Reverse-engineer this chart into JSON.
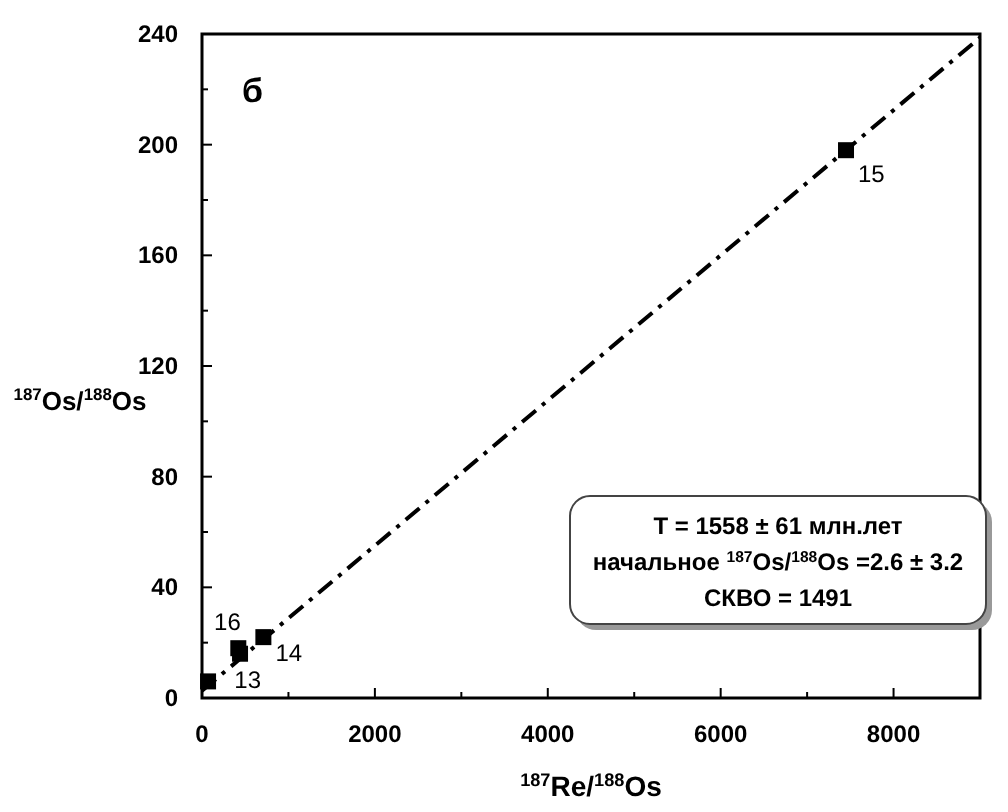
{
  "chart_data": {
    "type": "scatter",
    "xlabel": "$^{187}$Re/$^{188}$Os",
    "ylabel": "$^{187}$Os/$^{188}$Os",
    "xlim": [
      0,
      9000
    ],
    "ylim": [
      0,
      240
    ],
    "xticks": [
      0,
      {
        "value": 1000,
        "label": null
      },
      2000,
      {
        "value": 3000,
        "label": null
      },
      4000,
      {
        "value": 5000,
        "label": null
      },
      6000,
      {
        "value": 7000,
        "label": null
      },
      8000
    ],
    "yticks": [
      0,
      {
        "value": 20,
        "label": null
      },
      40,
      {
        "value": 60,
        "label": null
      },
      80,
      {
        "value": 100,
        "label": null
      },
      120,
      {
        "value": 140,
        "label": null
      },
      160,
      {
        "value": 180,
        "label": null
      },
      200,
      {
        "value": 220,
        "label": null
      },
      240
    ],
    "grid": false,
    "series": [
      {
        "marker": "square",
        "color": "#000000",
        "x": [
          70,
          420,
          440,
          710,
          7450
        ],
        "values": [
          6,
          18,
          16,
          22,
          198
        ]
      },
      {
        "type": "line",
        "line_style": "dashed",
        "marker": "none",
        "color": "#000000",
        "x": [
          0,
          9000
        ],
        "values": [
          2.6,
          238.7
        ]
      }
    ],
    "annotations": [
      "б",
      "T = 1558 ± 61 млн.лет",
      "начальное $^{187}$Os/$^{188}$Os =2.6 ± 3.2",
      "СКВО = 1491",
      {
        "text": "16",
        "x": 440,
        "y": 16
      },
      {
        "text": "13",
        "x": 420,
        "y": 18
      },
      {
        "text": "14",
        "x": 710,
        "y": 22
      },
      {
        "text": "15",
        "x": 7450,
        "y": 198
      }
    ]
  }
}
